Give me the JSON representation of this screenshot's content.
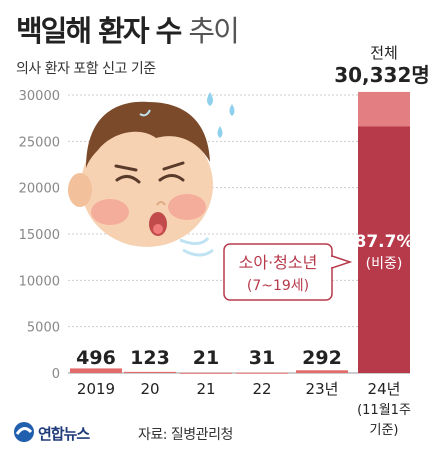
{
  "header": {
    "title_bold": "백일해 환자 수",
    "title_light": "추이",
    "subtitle": "의사 환자 포함 신고 기준"
  },
  "footer": {
    "logo_text": "연합뉴스",
    "source": "자료: 질병관리청"
  },
  "colors": {
    "bar": "#b73a4b",
    "bar_top": "#e37f82",
    "small_bar": "#e26b6b",
    "callout": "#b73a4b",
    "grid": "#cccccc"
  },
  "chart_data": {
    "type": "bar",
    "categories": [
      "2019",
      "20",
      "21",
      "22",
      "23년",
      "24년"
    ],
    "category_sub": [
      "",
      "",
      "",
      "",
      "",
      "(11월1주|기준)"
    ],
    "values": [
      496,
      123,
      21,
      31,
      292,
      30332
    ],
    "value_labels": [
      "496",
      "123",
      "21",
      "31",
      "292",
      "30,332명"
    ],
    "ylim": [
      0,
      30000
    ],
    "yticks": [
      0,
      5000,
      10000,
      15000,
      20000,
      25000,
      30000
    ],
    "total_label": "전체",
    "highlight": {
      "label": "소아·청소년",
      "range": "(7~19세)",
      "share_pct": 87.7,
      "share_label": "87.7%",
      "share_note": "(비중)"
    }
  }
}
